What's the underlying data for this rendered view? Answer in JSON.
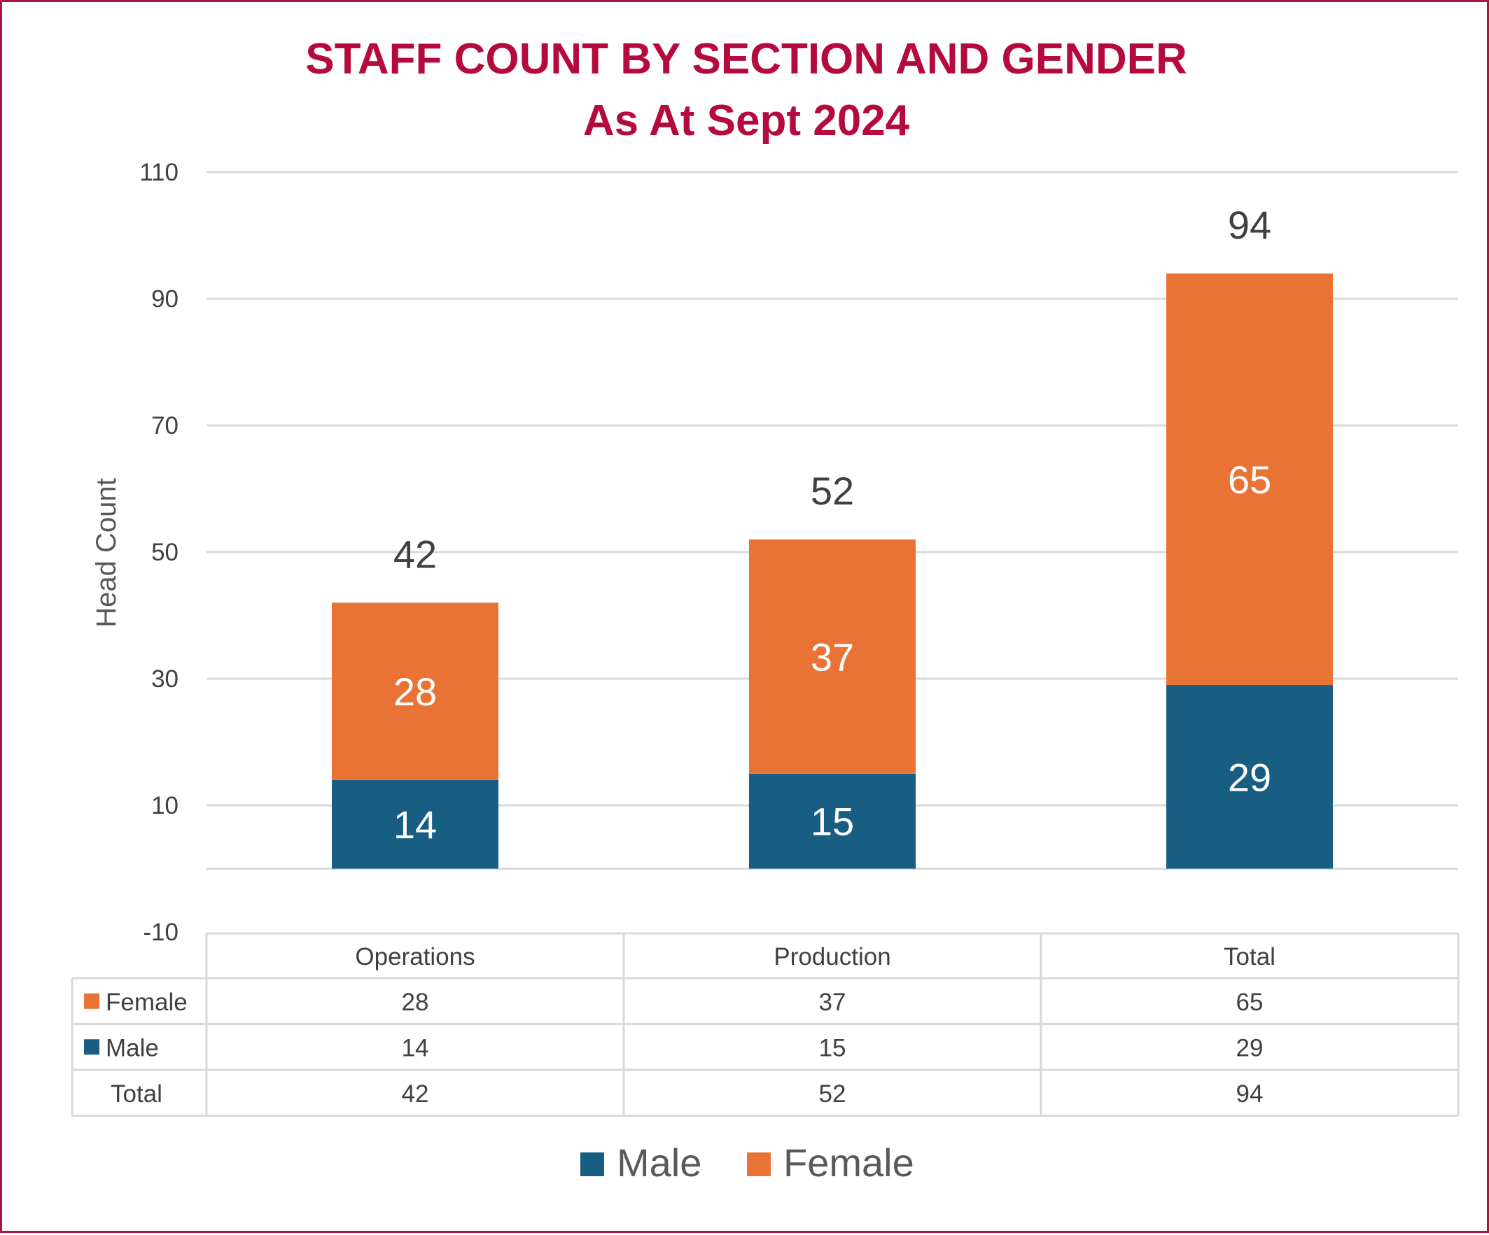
{
  "chart_data": {
    "type": "bar",
    "stacked": true,
    "title": "STAFF COUNT BY SECTION AND GENDER",
    "subtitle": "As At Sept 2024",
    "xlabel": "",
    "ylabel": "Head Count",
    "ylim": [
      -10,
      110
    ],
    "yticks": [
      110,
      90,
      70,
      50,
      30,
      10,
      -10
    ],
    "grid": true,
    "categories": [
      "Operations",
      "Production",
      "Total"
    ],
    "series": [
      {
        "name": "Male",
        "values": [
          14,
          15,
          29
        ],
        "color": "#175e82"
      },
      {
        "name": "Female",
        "values": [
          28,
          37,
          65
        ],
        "color": "#e97334"
      }
    ],
    "totals": [
      42,
      52,
      94
    ],
    "data_table": {
      "rows": [
        {
          "label": "Female",
          "series": "Female",
          "values": [
            28,
            37,
            65
          ]
        },
        {
          "label": "Male",
          "series": "Male",
          "values": [
            14,
            15,
            29
          ]
        },
        {
          "label": "Total",
          "series": null,
          "values": [
            42,
            52,
            94
          ]
        }
      ]
    },
    "legend": {
      "position": "bottom",
      "items": [
        "Male",
        "Female"
      ]
    }
  }
}
